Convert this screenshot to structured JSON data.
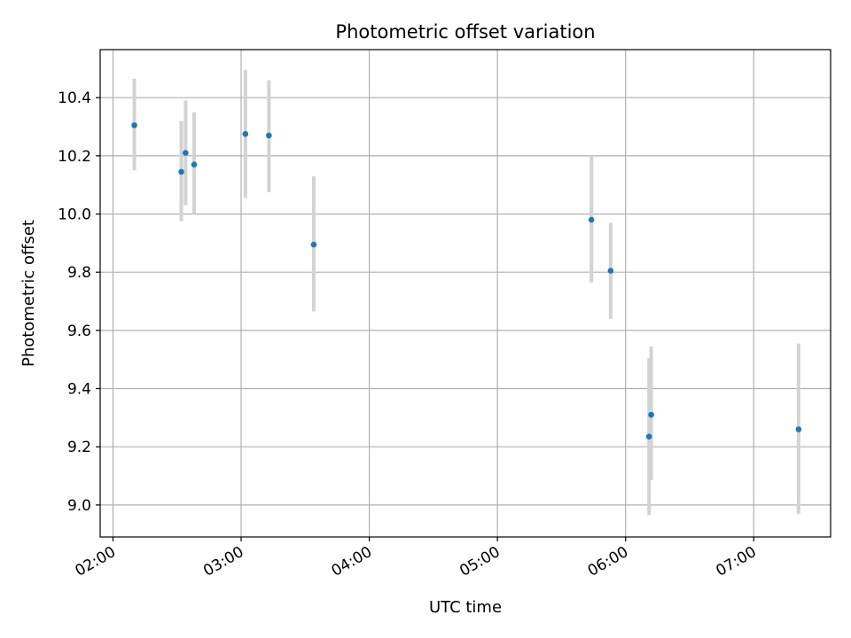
{
  "chart_data": {
    "type": "scatter",
    "title": "Photometric offset variation",
    "xlabel": "UTC time",
    "ylabel": "Photometric offset",
    "x_axis_kind": "time",
    "xlim": [
      "01:54",
      "07:36"
    ],
    "ylim": [
      8.89,
      10.565
    ],
    "x_ticks": [
      "02:00",
      "03:00",
      "04:00",
      "05:00",
      "06:00",
      "07:00"
    ],
    "y_ticks": [
      9.0,
      9.2,
      9.4,
      9.6,
      9.8,
      10.0,
      10.2,
      10.4
    ],
    "y_tick_labels": [
      "9.0",
      "9.2",
      "9.4",
      "9.6",
      "9.8",
      "10.0",
      "10.2",
      "10.4"
    ],
    "grid": true,
    "marker_color": "#1f77b4",
    "errorbar_color": "#d3d3d3",
    "series": [
      {
        "points": [
          {
            "time": "02:10",
            "y": 10.305,
            "low": 10.15,
            "high": 10.465
          },
          {
            "time": "02:32",
            "y": 10.145,
            "low": 9.975,
            "high": 10.32
          },
          {
            "time": "02:34",
            "y": 10.21,
            "low": 10.03,
            "high": 10.39
          },
          {
            "time": "02:38",
            "y": 10.17,
            "low": 10.0,
            "high": 10.35
          },
          {
            "time": "03:02",
            "y": 10.275,
            "low": 10.055,
            "high": 10.495
          },
          {
            "time": "03:13",
            "y": 10.27,
            "low": 10.075,
            "high": 10.46
          },
          {
            "time": "03:34",
            "y": 9.895,
            "low": 9.665,
            "high": 10.13
          },
          {
            "time": "05:44",
            "y": 9.98,
            "low": 9.765,
            "high": 10.2
          },
          {
            "time": "05:53",
            "y": 9.805,
            "low": 9.64,
            "high": 9.97
          },
          {
            "time": "06:11",
            "y": 9.235,
            "low": 8.965,
            "high": 9.505
          },
          {
            "time": "06:12",
            "y": 9.31,
            "low": 9.085,
            "high": 9.545
          },
          {
            "time": "07:21",
            "y": 9.26,
            "low": 8.97,
            "high": 9.555
          }
        ]
      }
    ]
  }
}
